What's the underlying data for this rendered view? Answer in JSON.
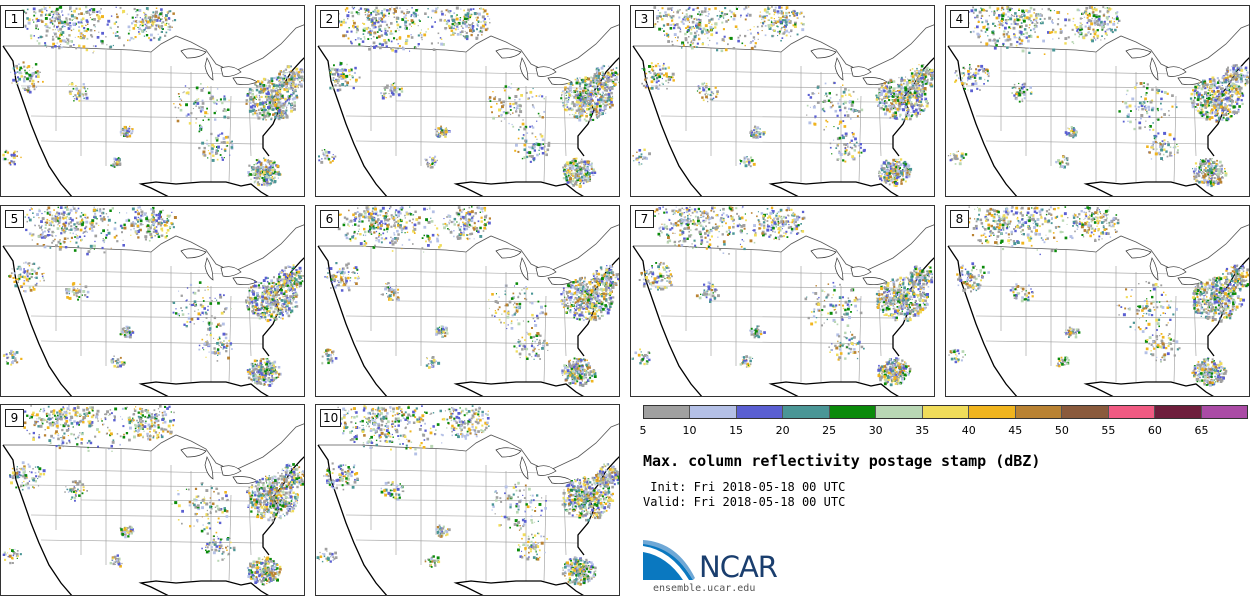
{
  "panels": [
    "1",
    "2",
    "3",
    "4",
    "5",
    "6",
    "7",
    "8",
    "9",
    "10"
  ],
  "legend": {
    "colors": [
      "#a0a0a0",
      "#b4c0e6",
      "#5a5fd2",
      "#4a9696",
      "#0a8a0a",
      "#b9d7b4",
      "#f0dc5a",
      "#f0b41e",
      "#b98232",
      "#8a5a3c",
      "#f05a82",
      "#6e1e3c",
      "#aa4ba5"
    ],
    "ticks": [
      "5",
      "10",
      "15",
      "20",
      "25",
      "30",
      "35",
      "40",
      "45",
      "50",
      "55",
      "60",
      "65"
    ]
  },
  "title": "Max. column reflectivity postage stamp (dBZ)",
  "init_line": " Init: Fri 2018-05-18 00 UTC",
  "valid_line": "Valid: Fri 2018-05-18 00 UTC",
  "logo_text": "NCAR",
  "website": "ensemble.ucar.edu"
}
